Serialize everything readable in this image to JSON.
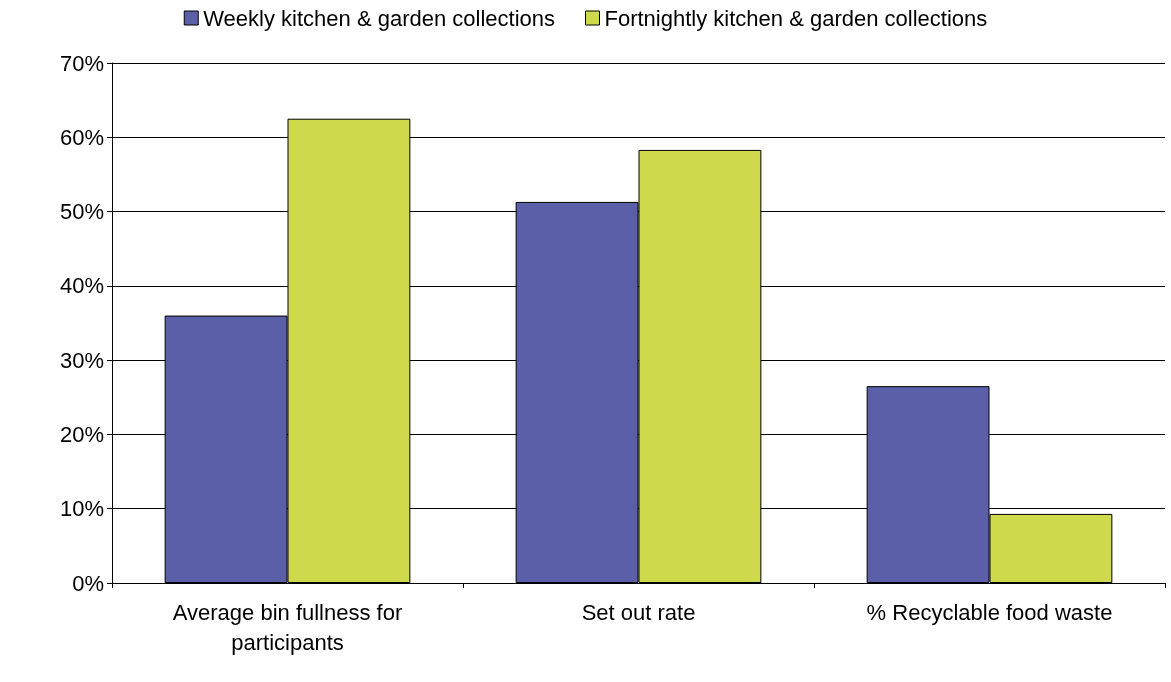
{
  "chart_data": {
    "type": "bar",
    "categories": [
      "Average bin fullness for\nparticipants",
      "Set out rate",
      "% Recyclable food waste"
    ],
    "series": [
      {
        "name": "Weekly kitchen & garden collections",
        "color": "#5a5fa8",
        "values": [
          36,
          51.3,
          26.5
        ]
      },
      {
        "name": "Fortnightly kitchen & garden collections",
        "color": "#cfd94c",
        "values": [
          62.5,
          58.3,
          9.3
        ]
      }
    ],
    "ylim": [
      0,
      70
    ],
    "yticks": [
      {
        "value": 0,
        "label": "0%"
      },
      {
        "value": 10,
        "label": "10%"
      },
      {
        "value": 20,
        "label": "20%"
      },
      {
        "value": 30,
        "label": "30%"
      },
      {
        "value": 40,
        "label": "40%"
      },
      {
        "value": 50,
        "label": "50%"
      },
      {
        "value": 60,
        "label": "60%"
      },
      {
        "value": 70,
        "label": "70%"
      }
    ],
    "grid": "y",
    "legend": "top"
  }
}
